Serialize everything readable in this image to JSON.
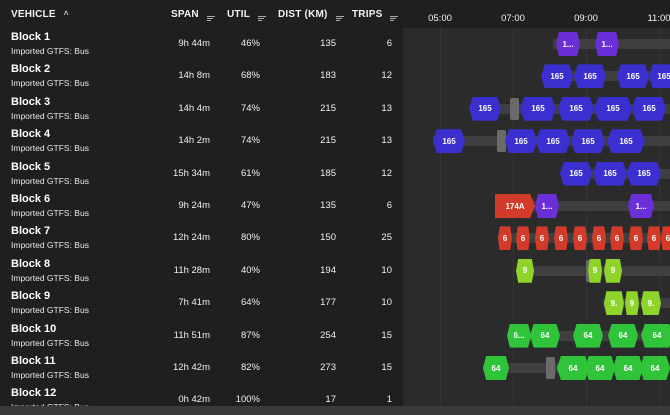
{
  "columns": {
    "vehicle": "VEHICLE",
    "span": "SPAN",
    "util": "UTIL",
    "dist": "DIST (KM)",
    "trips": "TRIPS"
  },
  "timeline": {
    "ticks": [
      "05:00",
      "07:00",
      "09:00",
      "11:00"
    ]
  },
  "colors": {
    "purple": "#6a2fd6",
    "blue": "#3b2fd0",
    "red": "#d23a2a",
    "lime": "#8fd42a",
    "green": "#2fc43a"
  },
  "rows": [
    {
      "name": "Block 1",
      "sub": "Imported GTFS: Bus",
      "span": "9h 44m",
      "util": "46%",
      "dist": "135",
      "trips": "6",
      "trips_items": [
        {
          "label": "1...",
          "color": "purple"
        },
        {
          "label": "1...",
          "color": "purple"
        }
      ]
    },
    {
      "name": "Block 2",
      "sub": "Imported GTFS: Bus",
      "span": "14h 8m",
      "util": "68%",
      "dist": "183",
      "trips": "12",
      "trips_items": [
        {
          "label": "165",
          "color": "blue"
        },
        {
          "label": "165",
          "color": "blue"
        },
        {
          "label": "165",
          "color": "blue"
        },
        {
          "label": "165",
          "color": "blue"
        }
      ]
    },
    {
      "name": "Block 3",
      "sub": "Imported GTFS: Bus",
      "span": "14h 4m",
      "util": "74%",
      "dist": "215",
      "trips": "13",
      "trips_items": [
        {
          "label": "165",
          "color": "blue"
        },
        {
          "label": "165",
          "color": "blue"
        },
        {
          "label": "165",
          "color": "blue"
        },
        {
          "label": "165",
          "color": "blue"
        },
        {
          "label": "165",
          "color": "blue"
        }
      ]
    },
    {
      "name": "Block 4",
      "sub": "Imported GTFS: Bus",
      "span": "14h 2m",
      "util": "74%",
      "dist": "215",
      "trips": "13",
      "trips_items": [
        {
          "label": "165",
          "color": "blue"
        },
        {
          "label": "165",
          "color": "blue"
        },
        {
          "label": "165",
          "color": "blue"
        },
        {
          "label": "165",
          "color": "blue"
        },
        {
          "label": "165",
          "color": "blue"
        }
      ]
    },
    {
      "name": "Block 5",
      "sub": "Imported GTFS: Bus",
      "span": "15h 34m",
      "util": "61%",
      "dist": "185",
      "trips": "12",
      "trips_items": [
        {
          "label": "165",
          "color": "blue"
        },
        {
          "label": "165",
          "color": "blue"
        },
        {
          "label": "165",
          "color": "blue"
        }
      ]
    },
    {
      "name": "Block 6",
      "sub": "Imported GTFS: Bus",
      "span": "9h 24m",
      "util": "47%",
      "dist": "135",
      "trips": "6",
      "trips_items": [
        {
          "label": "174A",
          "color": "red"
        },
        {
          "label": "1...",
          "color": "purple"
        },
        {
          "label": "1...",
          "color": "purple"
        }
      ]
    },
    {
      "name": "Block 7",
      "sub": "Imported GTFS: Bus",
      "span": "12h 24m",
      "util": "80%",
      "dist": "150",
      "trips": "25",
      "trips_items": [
        {
          "label": "6",
          "color": "red"
        },
        {
          "label": "6",
          "color": "red"
        },
        {
          "label": "6",
          "color": "red"
        },
        {
          "label": "6",
          "color": "red"
        },
        {
          "label": "6",
          "color": "red"
        },
        {
          "label": "6",
          "color": "red"
        },
        {
          "label": "6",
          "color": "red"
        },
        {
          "label": "6",
          "color": "red"
        },
        {
          "label": "6",
          "color": "red"
        },
        {
          "label": "6",
          "color": "red"
        }
      ]
    },
    {
      "name": "Block 8",
      "sub": "Imported GTFS: Bus",
      "span": "11h 28m",
      "util": "40%",
      "dist": "194",
      "trips": "10",
      "trips_items": [
        {
          "label": "9",
          "color": "lime"
        },
        {
          "label": "9",
          "color": "lime"
        },
        {
          "label": "9",
          "color": "lime"
        }
      ]
    },
    {
      "name": "Block 9",
      "sub": "Imported GTFS: Bus",
      "span": "7h 41m",
      "util": "64%",
      "dist": "177",
      "trips": "10",
      "trips_items": [
        {
          "label": "9.",
          "color": "lime"
        },
        {
          "label": "9",
          "color": "lime"
        },
        {
          "label": "9.",
          "color": "lime"
        }
      ]
    },
    {
      "name": "Block 10",
      "sub": "Imported GTFS: Bus",
      "span": "11h 51m",
      "util": "87%",
      "dist": "254",
      "trips": "15",
      "trips_items": [
        {
          "label": "6...",
          "color": "green"
        },
        {
          "label": "64",
          "color": "green"
        },
        {
          "label": "64",
          "color": "green"
        },
        {
          "label": "64",
          "color": "green"
        },
        {
          "label": "64",
          "color": "green"
        }
      ]
    },
    {
      "name": "Block 11",
      "sub": "Imported GTFS: Bus",
      "span": "12h 42m",
      "util": "82%",
      "dist": "273",
      "trips": "15",
      "trips_items": [
        {
          "label": "64",
          "color": "green"
        },
        {
          "label": "64",
          "color": "green"
        },
        {
          "label": "64",
          "color": "green"
        },
        {
          "label": "64",
          "color": "green"
        },
        {
          "label": "64",
          "color": "green"
        }
      ]
    },
    {
      "name": "Block 12",
      "sub": "Imported GTFS: Bus",
      "span": "0h 42m",
      "util": "100%",
      "dist": "17",
      "trips": "1",
      "trips_items": []
    }
  ]
}
